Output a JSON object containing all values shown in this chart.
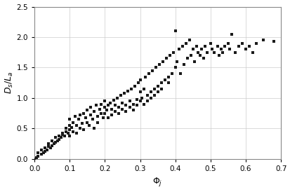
{
  "xlabel": "$\\Phi_j$",
  "ylabel": "$D_s / L_a$",
  "xlim": [
    0.0,
    0.7
  ],
  "ylim": [
    0.0,
    2.5
  ],
  "xticks": [
    0.0,
    0.1,
    0.2,
    0.3,
    0.4,
    0.5,
    0.6,
    0.7
  ],
  "yticks": [
    0.0,
    0.5,
    1.0,
    1.5,
    2.0,
    2.5
  ],
  "marker": "s",
  "marker_color": "#1a1a1a",
  "marker_size": 3.5,
  "bg_color": "#ffffff",
  "grid_color": "#cccccc",
  "scatter_x": [
    0.0,
    0.005,
    0.01,
    0.01,
    0.02,
    0.02,
    0.025,
    0.03,
    0.03,
    0.035,
    0.04,
    0.04,
    0.045,
    0.05,
    0.05,
    0.055,
    0.06,
    0.06,
    0.065,
    0.07,
    0.07,
    0.075,
    0.08,
    0.08,
    0.085,
    0.09,
    0.09,
    0.095,
    0.1,
    0.1,
    0.1,
    0.1,
    0.105,
    0.11,
    0.11,
    0.115,
    0.12,
    0.12,
    0.125,
    0.13,
    0.13,
    0.135,
    0.14,
    0.14,
    0.145,
    0.15,
    0.15,
    0.155,
    0.16,
    0.16,
    0.165,
    0.17,
    0.17,
    0.175,
    0.18,
    0.18,
    0.185,
    0.19,
    0.19,
    0.195,
    0.2,
    0.2,
    0.2,
    0.205,
    0.21,
    0.21,
    0.215,
    0.22,
    0.22,
    0.225,
    0.23,
    0.23,
    0.235,
    0.24,
    0.24,
    0.245,
    0.25,
    0.25,
    0.255,
    0.26,
    0.26,
    0.265,
    0.27,
    0.27,
    0.275,
    0.28,
    0.28,
    0.285,
    0.29,
    0.29,
    0.295,
    0.3,
    0.3,
    0.3,
    0.305,
    0.31,
    0.31,
    0.315,
    0.32,
    0.32,
    0.325,
    0.33,
    0.33,
    0.335,
    0.34,
    0.34,
    0.345,
    0.35,
    0.35,
    0.355,
    0.36,
    0.36,
    0.365,
    0.37,
    0.375,
    0.38,
    0.38,
    0.385,
    0.39,
    0.395,
    0.4,
    0.4,
    0.405,
    0.41,
    0.415,
    0.42,
    0.425,
    0.43,
    0.435,
    0.44,
    0.445,
    0.45,
    0.455,
    0.46,
    0.465,
    0.47,
    0.475,
    0.48,
    0.485,
    0.49,
    0.5,
    0.505,
    0.51,
    0.52,
    0.525,
    0.53,
    0.535,
    0.54,
    0.55,
    0.555,
    0.56,
    0.57,
    0.58,
    0.59,
    0.6,
    0.61,
    0.62,
    0.63,
    0.65,
    0.68
  ],
  "scatter_y": [
    0.0,
    0.02,
    0.05,
    0.1,
    0.08,
    0.15,
    0.1,
    0.12,
    0.18,
    0.15,
    0.2,
    0.25,
    0.18,
    0.22,
    0.3,
    0.25,
    0.28,
    0.35,
    0.3,
    0.32,
    0.38,
    0.35,
    0.4,
    0.42,
    0.38,
    0.45,
    0.5,
    0.42,
    0.48,
    0.55,
    0.38,
    0.65,
    0.52,
    0.6,
    0.45,
    0.7,
    0.55,
    0.42,
    0.65,
    0.5,
    0.72,
    0.58,
    0.75,
    0.48,
    0.68,
    0.6,
    0.8,
    0.55,
    0.72,
    0.85,
    0.65,
    0.78,
    0.5,
    0.88,
    0.7,
    0.6,
    0.82,
    0.75,
    0.9,
    0.68,
    0.85,
    0.75,
    0.95,
    0.8,
    0.88,
    0.68,
    0.92,
    0.82,
    0.72,
    0.96,
    0.88,
    0.78,
    1.0,
    0.85,
    0.75,
    1.05,
    0.92,
    0.82,
    1.08,
    0.88,
    0.78,
    1.12,
    0.95,
    0.85,
    1.15,
    0.9,
    0.8,
    1.2,
    0.98,
    0.88,
    1.25,
    0.95,
    1.1,
    1.3,
    1.0,
    1.15,
    0.9,
    1.35,
    1.05,
    0.95,
    1.4,
    1.1,
    1.0,
    1.45,
    1.15,
    1.05,
    1.5,
    1.2,
    1.1,
    1.55,
    1.25,
    1.15,
    1.6,
    1.3,
    1.65,
    1.35,
    1.25,
    1.7,
    1.4,
    1.75,
    2.1,
    1.5,
    1.6,
    1.8,
    1.4,
    1.85,
    1.55,
    1.9,
    1.65,
    1.95,
    1.7,
    1.8,
    1.6,
    1.85,
    1.75,
    1.7,
    1.8,
    1.65,
    1.85,
    1.75,
    1.9,
    1.8,
    1.75,
    1.85,
    1.7,
    1.8,
    1.75,
    1.85,
    1.9,
    1.8,
    2.05,
    1.75,
    1.85,
    1.9,
    1.8,
    1.85,
    1.75,
    1.9,
    1.95,
    1.93
  ]
}
